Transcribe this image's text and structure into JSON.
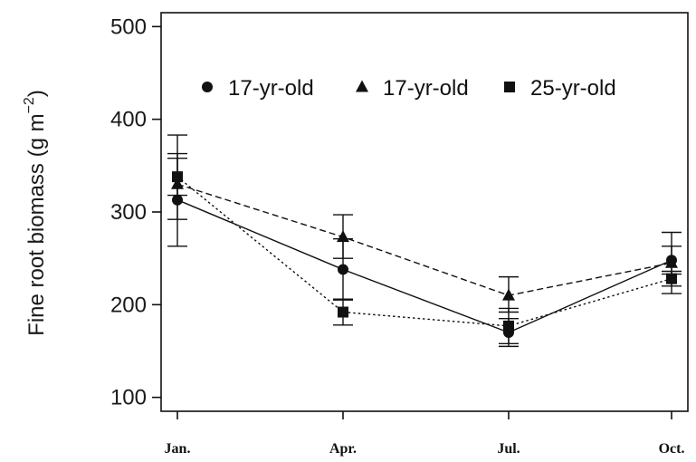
{
  "chart_data": {
    "type": "line",
    "title": "",
    "ylabel": "Fine root biomass (g m",
    "ylabel_unit_exponent": "−2",
    "ylabel_close": ")",
    "xlabel": "",
    "categories": [
      "Jan.",
      "Apr.",
      "Jul.",
      "Oct."
    ],
    "ylim": [
      85,
      515
    ],
    "yticks": [
      100,
      200,
      300,
      400,
      500
    ],
    "grid": false,
    "legend_position": "top-center",
    "series": [
      {
        "name": "17-yr-old",
        "marker": "circle",
        "line_style": "solid",
        "values": [
          313,
          238,
          170,
          248
        ],
        "error_low": [
          263,
          205,
          155,
          233
        ],
        "error_high": [
          363,
          271,
          185,
          263
        ]
      },
      {
        "name": "17-yr-old",
        "marker": "triangle",
        "line_style": "dashed",
        "values": [
          330,
          273,
          210,
          245
        ],
        "error_low": [
          292,
          250,
          192,
          212
        ],
        "error_high": [
          383,
          297,
          230,
          278
        ]
      },
      {
        "name": "25-yr-old",
        "marker": "square",
        "line_style": "dotted",
        "values": [
          338,
          192,
          177,
          228
        ],
        "error_low": [
          318,
          178,
          158,
          220
        ],
        "error_high": [
          358,
          206,
          196,
          236
        ]
      }
    ],
    "colors": {
      "ink": "#111111"
    }
  }
}
